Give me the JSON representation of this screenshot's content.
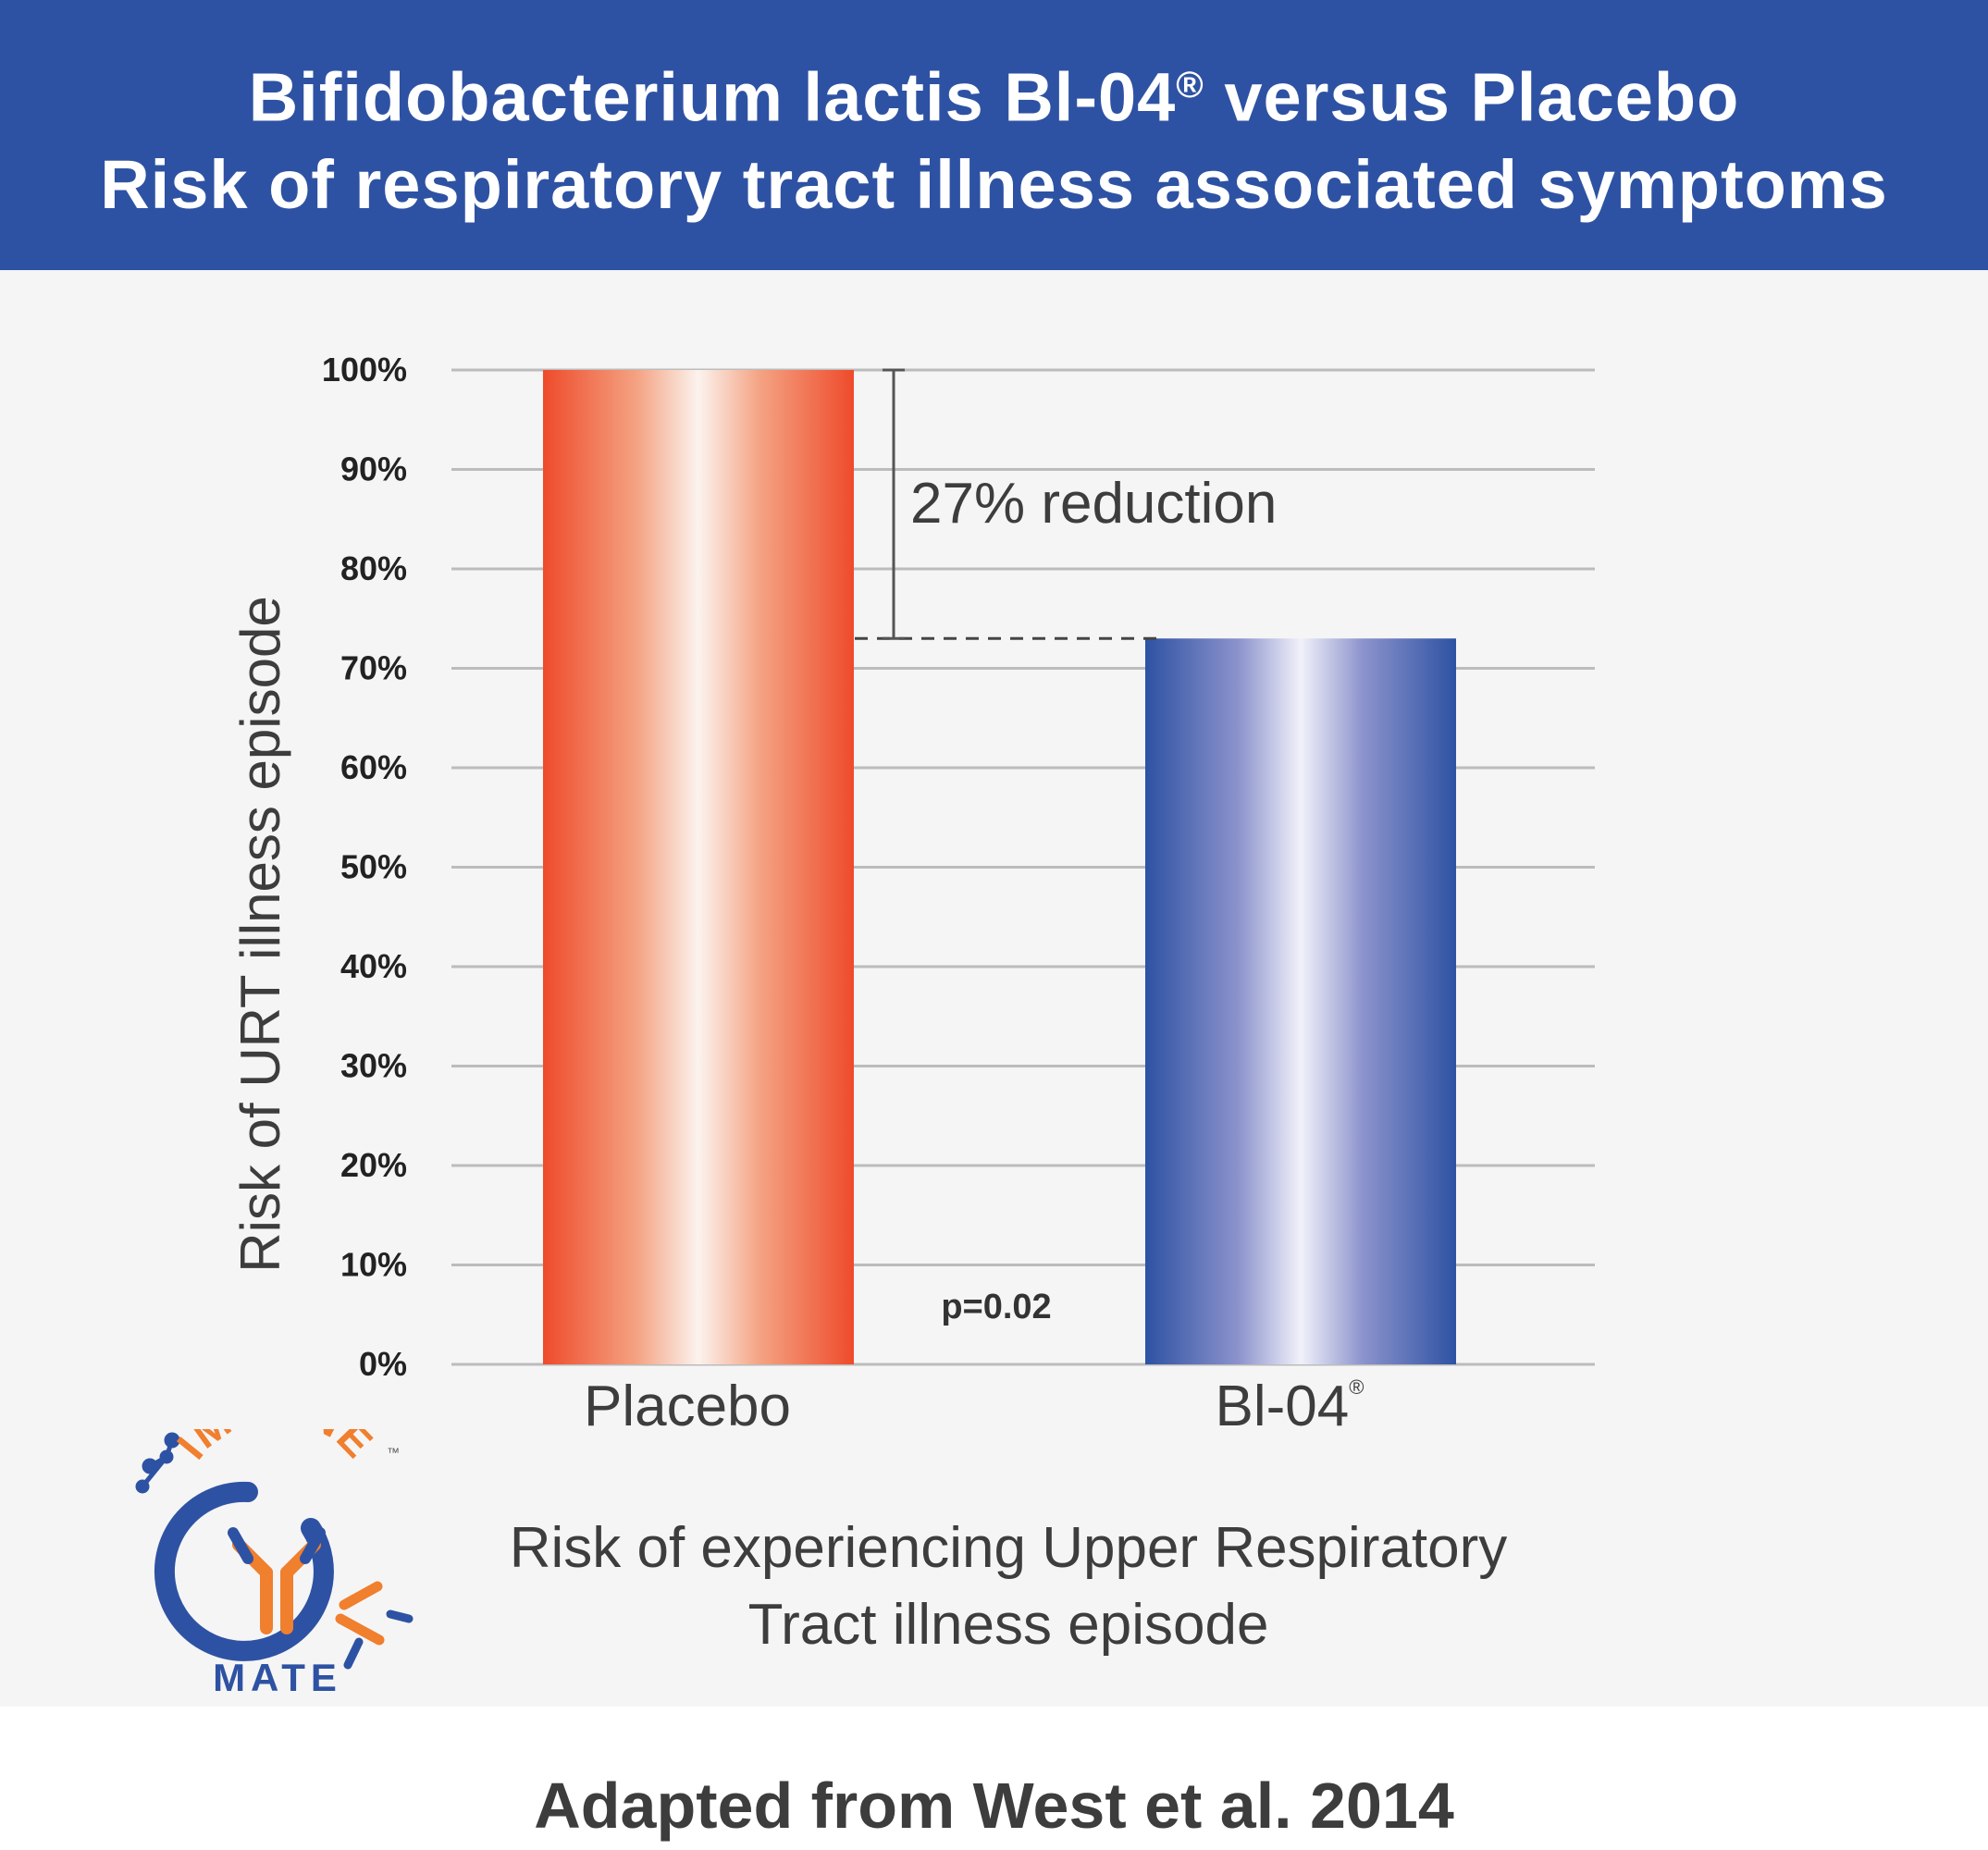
{
  "header": {
    "title_line1": "Bifidobacterium lactis Bl-04",
    "title_reg": "®",
    "title_line1_rest": " versus Placebo",
    "title_line2": "Risk of respiratory tract illness associated symptoms"
  },
  "chart_data": {
    "type": "bar",
    "categories": [
      "Placebo",
      "Bl-04"
    ],
    "category_marks": [
      "",
      "®"
    ],
    "values": [
      100,
      73
    ],
    "colors": [
      "#ee4b2b",
      "#2e52a3"
    ],
    "ylabel": "Risk of URT illness episode",
    "xlabel_line1": "Risk of experiencing Upper Respiratory",
    "xlabel_line2": "Tract illness episode",
    "ylim": [
      0,
      100
    ],
    "yticks": [
      0,
      10,
      20,
      30,
      40,
      50,
      60,
      70,
      80,
      90,
      100
    ],
    "ytick_suffix": "%",
    "grid": true,
    "annotations": {
      "reduction": "27% reduction",
      "pvalue": "p=0.02"
    }
  },
  "logo": {
    "word_top": "IMMUNE",
    "word_bottom": "MATE",
    "tm": "™",
    "colors": {
      "orange": "#f07f2e",
      "blue": "#2e52a3"
    }
  },
  "footer": {
    "source": "Adapted from West et al. 2014"
  }
}
